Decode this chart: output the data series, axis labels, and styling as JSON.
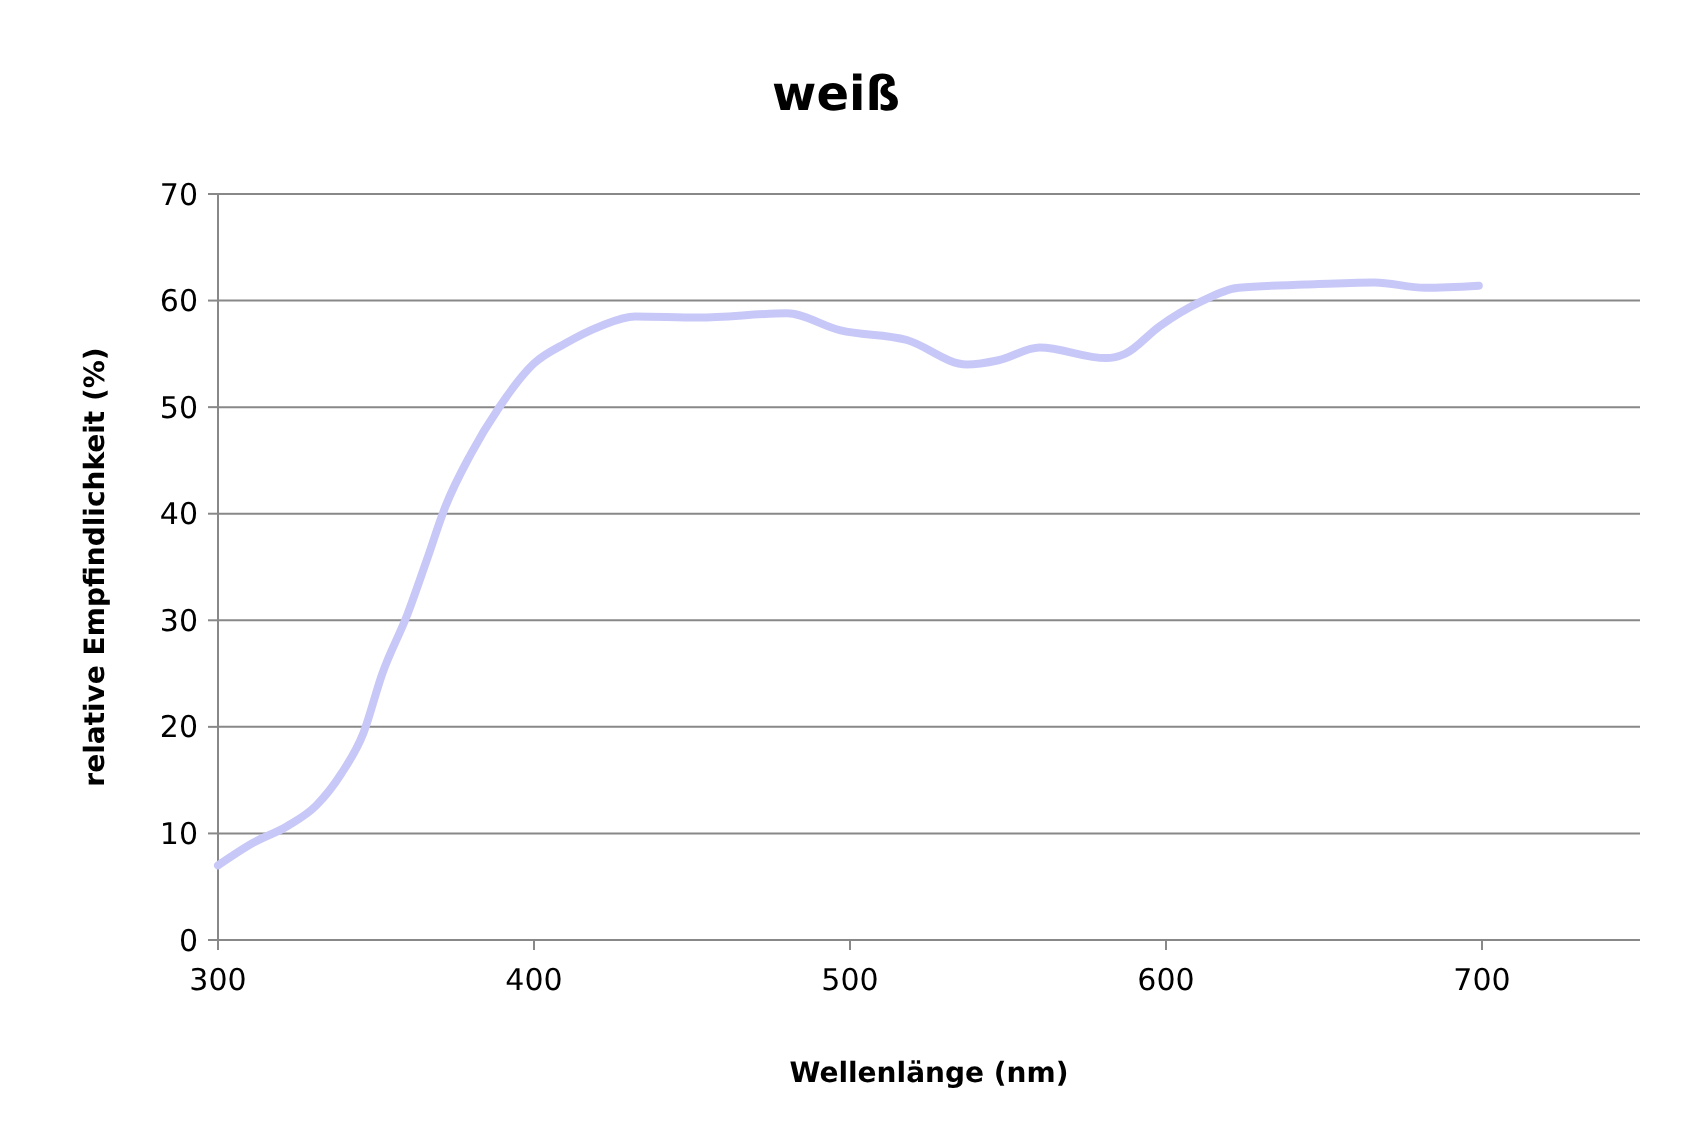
{
  "chart_data": {
    "type": "line",
    "title": "weiß",
    "xlabel": "Wellenlänge (nm)",
    "ylabel": "relative Empfindlichkeit (%)",
    "xlim": [
      300,
      750
    ],
    "xticks": [
      300,
      400,
      500,
      600,
      700
    ],
    "ylim": [
      0,
      70
    ],
    "yticks": [
      0,
      10,
      20,
      30,
      40,
      50,
      60,
      70
    ],
    "grid": "y",
    "line_style": "solid",
    "series": [
      {
        "color": "#c8c8f8",
        "x": [
          300,
          311,
          322,
          331,
          339,
          346,
          352,
          360,
          366,
          372,
          380,
          389,
          400,
          410,
          421,
          432,
          452,
          480,
          497,
          518,
          537,
          547,
          560,
          581,
          587,
          598,
          611,
          623,
          644,
          666,
          682,
          699
        ],
        "values": [
          7,
          9.1,
          10.7,
          12.6,
          15.6,
          19.4,
          25,
          30.6,
          35.6,
          40.7,
          45.6,
          50,
          54.1,
          56,
          57.6,
          58.5,
          58.4,
          58.8,
          57.2,
          56.3,
          54,
          54.4,
          55.6,
          54.6,
          55,
          57.6,
          59.9,
          61.2,
          61.5,
          61.7,
          61.2,
          61.4
        ]
      }
    ]
  }
}
